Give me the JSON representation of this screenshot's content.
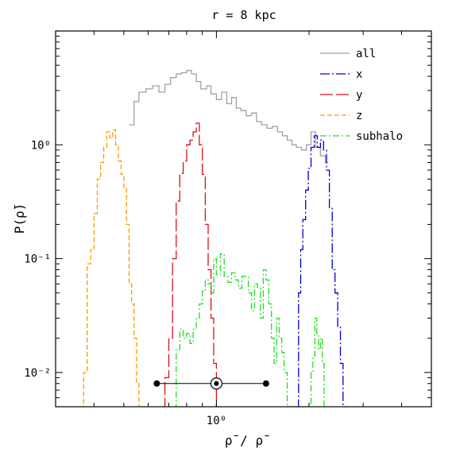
{
  "chart_data": {
    "type": "line",
    "title": "r = 8 kpc",
    "xlabel": "ρ̄ / ρ̃",
    "ylabel": "P(ρ̄)",
    "xscale": "log",
    "yscale": "log",
    "xlim": [
      0.3,
      5.0
    ],
    "ylim": [
      0.005,
      10.0
    ],
    "xticks": [
      {
        "value": 1.0,
        "label": "10⁰"
      }
    ],
    "yticks": [
      {
        "value": 0.01,
        "label": "10⁻²"
      },
      {
        "value": 0.1,
        "label": "10⁻¹"
      },
      {
        "value": 1.0,
        "label": "10⁰"
      }
    ],
    "legend_position": "top-right",
    "series": [
      {
        "name": "all",
        "color": "#a0a0a0",
        "dash": "solid",
        "steps": [
          [
            0.52,
            1.5
          ],
          [
            0.54,
            2.4
          ],
          [
            0.56,
            2.9
          ],
          [
            0.59,
            3.1
          ],
          [
            0.62,
            3.3
          ],
          [
            0.65,
            2.9
          ],
          [
            0.68,
            3.4
          ],
          [
            0.71,
            3.9
          ],
          [
            0.74,
            4.2
          ],
          [
            0.77,
            4.3
          ],
          [
            0.8,
            4.5
          ],
          [
            0.83,
            4.2
          ],
          [
            0.86,
            3.6
          ],
          [
            0.89,
            3.1
          ],
          [
            0.93,
            3.3
          ],
          [
            0.96,
            2.8
          ],
          [
            1.0,
            2.5
          ],
          [
            1.04,
            2.9
          ],
          [
            1.08,
            2.3
          ],
          [
            1.12,
            2.6
          ],
          [
            1.16,
            2.1
          ],
          [
            1.2,
            2.0
          ],
          [
            1.25,
            1.8
          ],
          [
            1.3,
            1.9
          ],
          [
            1.35,
            1.6
          ],
          [
            1.4,
            1.5
          ],
          [
            1.46,
            1.4
          ],
          [
            1.52,
            1.45
          ],
          [
            1.58,
            1.3
          ],
          [
            1.64,
            1.2
          ],
          [
            1.7,
            1.1
          ],
          [
            1.76,
            1.0
          ],
          [
            1.82,
            0.95
          ],
          [
            1.89,
            0.9
          ],
          [
            1.96,
            1.0
          ],
          [
            2.03,
            1.3
          ],
          [
            2.1,
            0.95
          ],
          [
            2.18,
            0.8
          ],
          [
            2.26,
            0.7
          ]
        ]
      },
      {
        "name": "x",
        "color": "#0000cc",
        "dash": "12,3,2,3",
        "steps": [
          [
            1.82,
            0.005
          ],
          [
            1.85,
            0.05
          ],
          [
            1.88,
            0.12
          ],
          [
            1.91,
            0.22
          ],
          [
            1.95,
            0.4
          ],
          [
            1.99,
            0.62
          ],
          [
            2.03,
            0.95
          ],
          [
            2.08,
            1.2
          ],
          [
            2.13,
            0.95
          ],
          [
            2.18,
            1.1
          ],
          [
            2.23,
            0.9
          ],
          [
            2.28,
            0.6
          ],
          [
            2.33,
            0.28
          ],
          [
            2.38,
            0.08
          ],
          [
            2.43,
            0.05
          ],
          [
            2.48,
            0.025
          ],
          [
            2.53,
            0.012
          ],
          [
            2.58,
            0.005
          ]
        ]
      },
      {
        "name": "y",
        "color": "#e01010",
        "dash": "16,4",
        "steps": [
          [
            0.66,
            0.005
          ],
          [
            0.68,
            0.009
          ],
          [
            0.7,
            0.02
          ],
          [
            0.72,
            0.1
          ],
          [
            0.74,
            0.32
          ],
          [
            0.76,
            0.56
          ],
          [
            0.78,
            0.72
          ],
          [
            0.8,
            1.0
          ],
          [
            0.82,
            1.1
          ],
          [
            0.84,
            1.3
          ],
          [
            0.86,
            1.55
          ],
          [
            0.88,
            1.0
          ],
          [
            0.9,
            0.55
          ],
          [
            0.92,
            0.2
          ],
          [
            0.94,
            0.08
          ],
          [
            0.96,
            0.03
          ],
          [
            0.98,
            0.012
          ],
          [
            1.0,
            0.005
          ]
        ]
      },
      {
        "name": "z",
        "color": "#ff9900",
        "dash": "6,3",
        "steps": [
          [
            0.36,
            0.005
          ],
          [
            0.37,
            0.01
          ],
          [
            0.38,
            0.09
          ],
          [
            0.39,
            0.12
          ],
          [
            0.4,
            0.25
          ],
          [
            0.41,
            0.5
          ],
          [
            0.42,
            0.7
          ],
          [
            0.43,
            0.95
          ],
          [
            0.44,
            1.3
          ],
          [
            0.45,
            1.15
          ],
          [
            0.46,
            1.35
          ],
          [
            0.47,
            1.0
          ],
          [
            0.48,
            0.72
          ],
          [
            0.49,
            0.55
          ],
          [
            0.5,
            0.42
          ],
          [
            0.51,
            0.2
          ],
          [
            0.52,
            0.06
          ],
          [
            0.53,
            0.04
          ],
          [
            0.54,
            0.02
          ],
          [
            0.55,
            0.008
          ],
          [
            0.56,
            0.005
          ]
        ]
      },
      {
        "name": "subhalo",
        "color": "#22dd22",
        "dash": "8,3,2,3",
        "steps": [
          [
            0.72,
            0.005
          ],
          [
            0.74,
            0.016
          ],
          [
            0.76,
            0.024
          ],
          [
            0.78,
            0.02
          ],
          [
            0.8,
            0.022
          ],
          [
            0.82,
            0.018
          ],
          [
            0.84,
            0.024
          ],
          [
            0.86,
            0.03
          ],
          [
            0.88,
            0.04
          ],
          [
            0.9,
            0.052
          ],
          [
            0.92,
            0.065
          ],
          [
            0.94,
            0.06
          ],
          [
            0.96,
            0.05
          ],
          [
            0.98,
            0.1
          ],
          [
            1.0,
            0.072
          ],
          [
            1.03,
            0.11
          ],
          [
            1.06,
            0.07
          ],
          [
            1.09,
            0.062
          ],
          [
            1.12,
            0.075
          ],
          [
            1.15,
            0.065
          ],
          [
            1.18,
            0.055
          ],
          [
            1.21,
            0.07
          ],
          [
            1.24,
            0.07
          ],
          [
            1.27,
            0.05
          ],
          [
            1.3,
            0.035
          ],
          [
            1.33,
            0.06
          ],
          [
            1.36,
            0.055
          ],
          [
            1.39,
            0.03
          ],
          [
            1.42,
            0.08
          ],
          [
            1.45,
            0.065
          ],
          [
            1.48,
            0.04
          ],
          [
            1.51,
            0.02
          ],
          [
            1.54,
            0.012
          ],
          [
            1.57,
            0.03
          ],
          [
            1.6,
            0.02
          ],
          [
            1.63,
            0.015
          ],
          [
            1.66,
            0.01
          ],
          [
            1.7,
            0.005
          ],
          [
            2.0,
            0.005
          ],
          [
            2.03,
            0.01
          ],
          [
            2.06,
            0.014
          ],
          [
            2.09,
            0.03
          ],
          [
            2.12,
            0.022
          ],
          [
            2.15,
            0.016
          ],
          [
            2.18,
            0.02
          ],
          [
            2.21,
            0.012
          ],
          [
            2.24,
            0.005
          ]
        ]
      }
    ],
    "errorbar": {
      "y": 0.008,
      "center": 1.0,
      "low": 0.64,
      "high": 1.45,
      "center_marker": "circled-dot",
      "end_marker": "filled-circle"
    }
  }
}
